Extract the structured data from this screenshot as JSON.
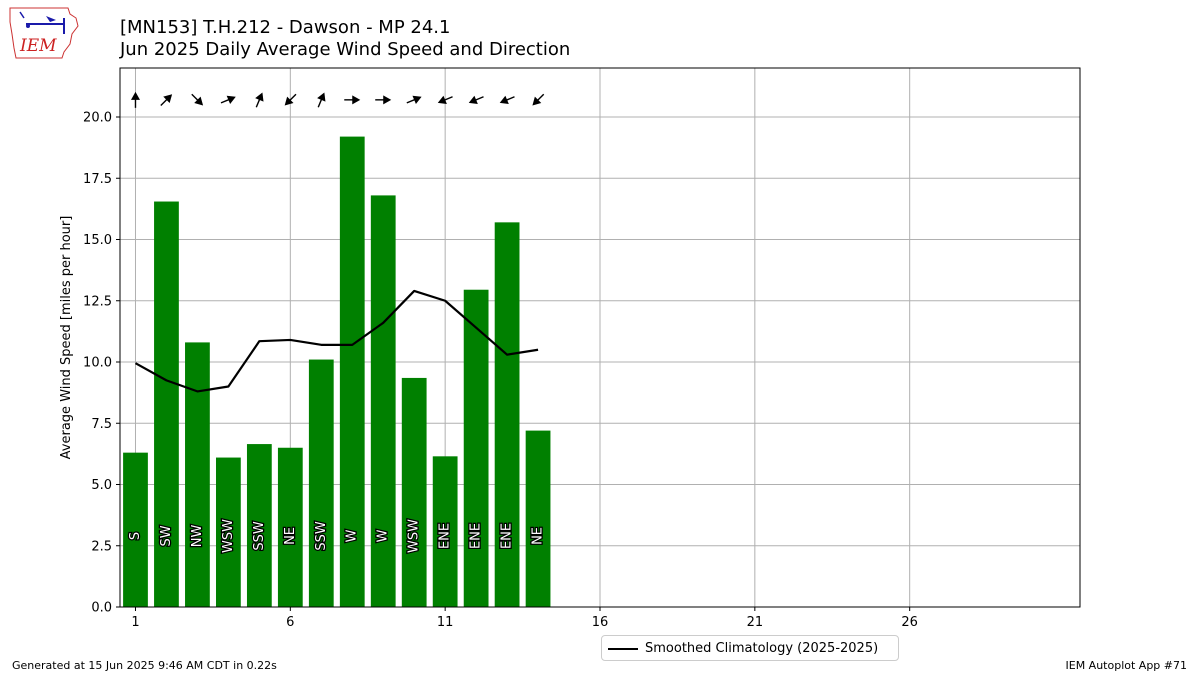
{
  "header": {
    "title_line1": "[MN153] T.H.212 - Dawson - MP 24.1",
    "title_line2": "Jun 2025 Daily Average Wind Speed and Direction",
    "logo_text": "IEM",
    "logo_icon": "iem-iowa-logo-icon"
  },
  "footer": {
    "generated": "Generated at 15 Jun 2025 9:46 AM CDT in 0.22s",
    "app": "IEM Autoplot App #71"
  },
  "legend": {
    "label": "Smoothed Climatology (2025-2025)"
  },
  "colors": {
    "bar": "#008000",
    "line": "#000000",
    "grid": "#b0b0b0",
    "arrow": "#000000"
  },
  "chart_data": {
    "type": "bar",
    "ylabel": "Average Wind Speed [miles per hour]",
    "xlabel": "",
    "xlim": [
      0.5,
      31.5
    ],
    "ylim": [
      0,
      22.0
    ],
    "xticks": [
      1,
      6,
      11,
      16,
      21,
      26
    ],
    "yticks": [
      0.0,
      2.5,
      5.0,
      7.5,
      10.0,
      12.5,
      15.0,
      17.5,
      20.0
    ],
    "grid": true,
    "legend_placement": "bottom-center",
    "days": [
      1,
      2,
      3,
      4,
      5,
      6,
      7,
      8,
      9,
      10,
      11,
      12,
      13,
      14
    ],
    "series": [
      {
        "name": "Average Wind Speed",
        "type": "bar",
        "values": [
          6.3,
          16.55,
          10.8,
          6.1,
          6.65,
          6.5,
          10.1,
          19.2,
          16.8,
          9.35,
          6.15,
          12.95,
          15.7,
          7.2
        ]
      },
      {
        "name": "Smoothed Climatology (2025-2025)",
        "type": "line",
        "values": [
          9.95,
          9.25,
          8.8,
          9.0,
          10.85,
          10.9,
          10.7,
          10.7,
          11.6,
          12.9,
          12.5,
          11.4,
          10.3,
          10.5
        ]
      }
    ],
    "directions": [
      "S",
      "SW",
      "NW",
      "WSW",
      "SSW",
      "NE",
      "SSW",
      "W",
      "W",
      "WSW",
      "ENE",
      "ENE",
      "ENE",
      "NE"
    ],
    "direction_deg": [
      180,
      225,
      315,
      247.5,
      202.5,
      45,
      202.5,
      270,
      270,
      247.5,
      67.5,
      67.5,
      67.5,
      45
    ]
  }
}
